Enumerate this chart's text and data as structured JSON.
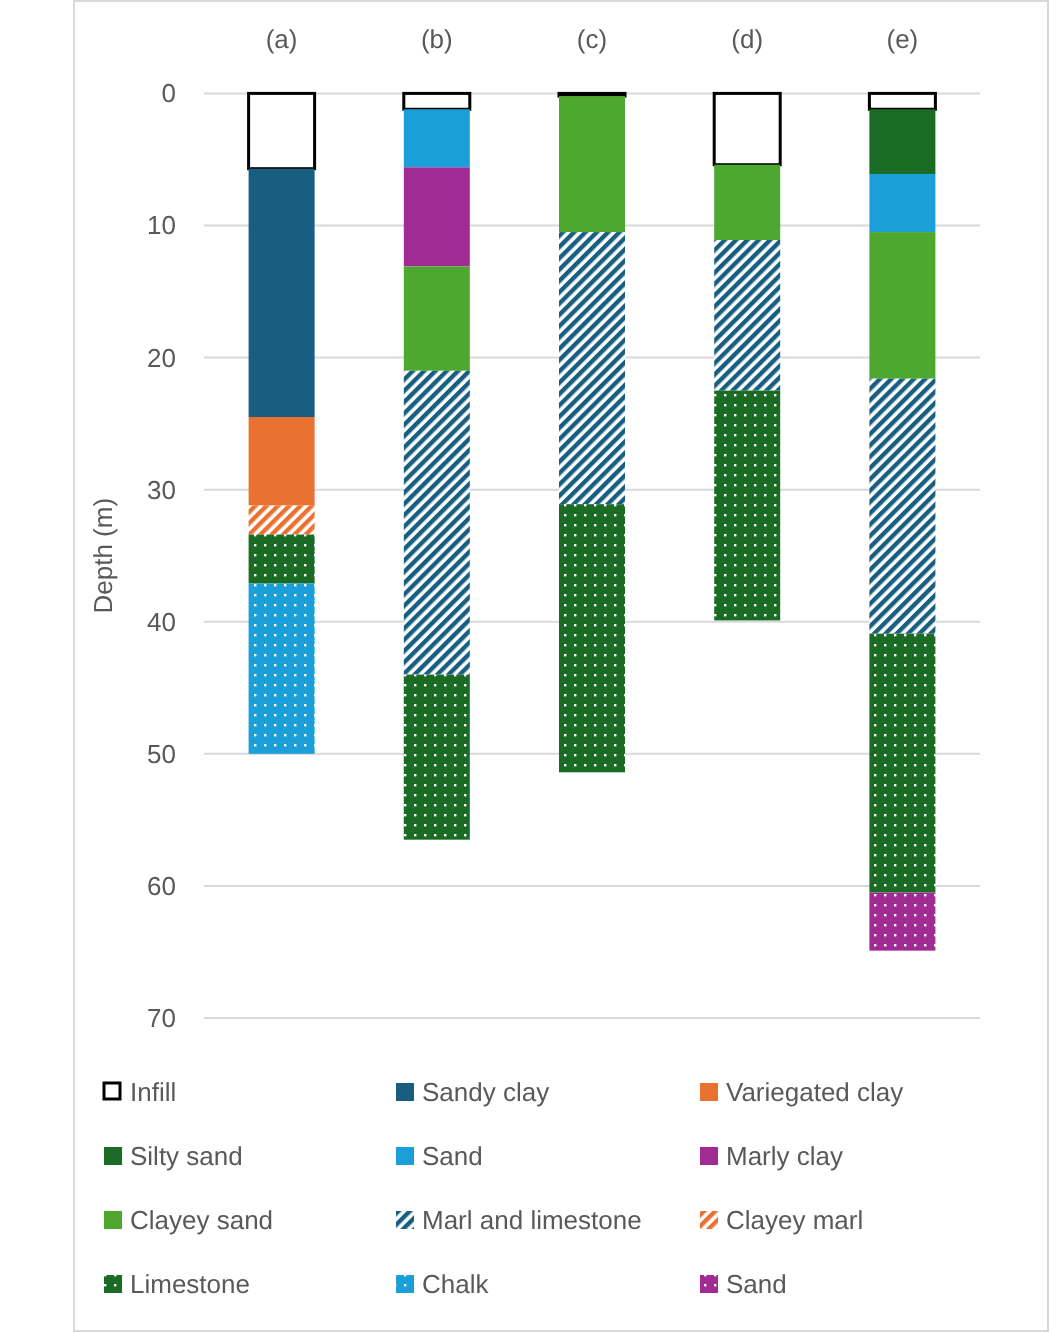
{
  "chart_data": {
    "type": "bar",
    "stacked": true,
    "ylabel": "Depth (m)",
    "categories": [
      "(a)",
      "(b)",
      "(c)",
      "(d)",
      "(e)"
    ],
    "ylim": [
      70,
      0
    ],
    "yticks": [
      0,
      10,
      20,
      30,
      40,
      50,
      60,
      70
    ],
    "grid": "y",
    "legend": "bottom",
    "series": [
      {
        "name": "Infill",
        "color": "#ffffff",
        "values": [
          5.7,
          1.2,
          0.2,
          5.4,
          1.2
        ]
      },
      {
        "name": "Sandy clay",
        "color": "#175e80",
        "values": [
          18.8,
          null,
          null,
          null,
          null
        ]
      },
      {
        "name": "Variegated clay",
        "color": "#e97132",
        "values": [
          6.7,
          null,
          null,
          null,
          null
        ]
      },
      {
        "name": "Silty sand",
        "color": "#1a6b24",
        "values": [
          null,
          null,
          null,
          null,
          4.9
        ]
      },
      {
        "name": "Sand",
        "color": "#1a9fd8",
        "values": [
          null,
          4.4,
          null,
          null,
          4.4
        ]
      },
      {
        "name": "Marly clay",
        "color": "#a02b93",
        "values": [
          null,
          7.5,
          null,
          null,
          null
        ]
      },
      {
        "name": "Clayey sand",
        "color": "#4ea72e",
        "values": [
          null,
          7.9,
          10.3,
          5.7,
          11.1
        ]
      },
      {
        "name": "Marl and limestone",
        "color": "#175e80",
        "values": [
          null,
          23.0,
          20.6,
          11.4,
          19.3
        ]
      },
      {
        "name": "Clayey marl",
        "color": "#e97132",
        "values": [
          2.2,
          null,
          null,
          null,
          null
        ]
      },
      {
        "name": "Limestone",
        "color": "#1a6b24",
        "values": [
          3.7,
          12.5,
          20.3,
          17.4,
          19.6
        ]
      },
      {
        "name": "Chalk",
        "color": "#1a9fd8",
        "values": [
          12.9,
          null,
          null,
          null,
          null
        ]
      },
      {
        "name": "Sand",
        "color": "#a02b93",
        "values": [
          null,
          null,
          null,
          null,
          4.4
        ]
      }
    ]
  }
}
